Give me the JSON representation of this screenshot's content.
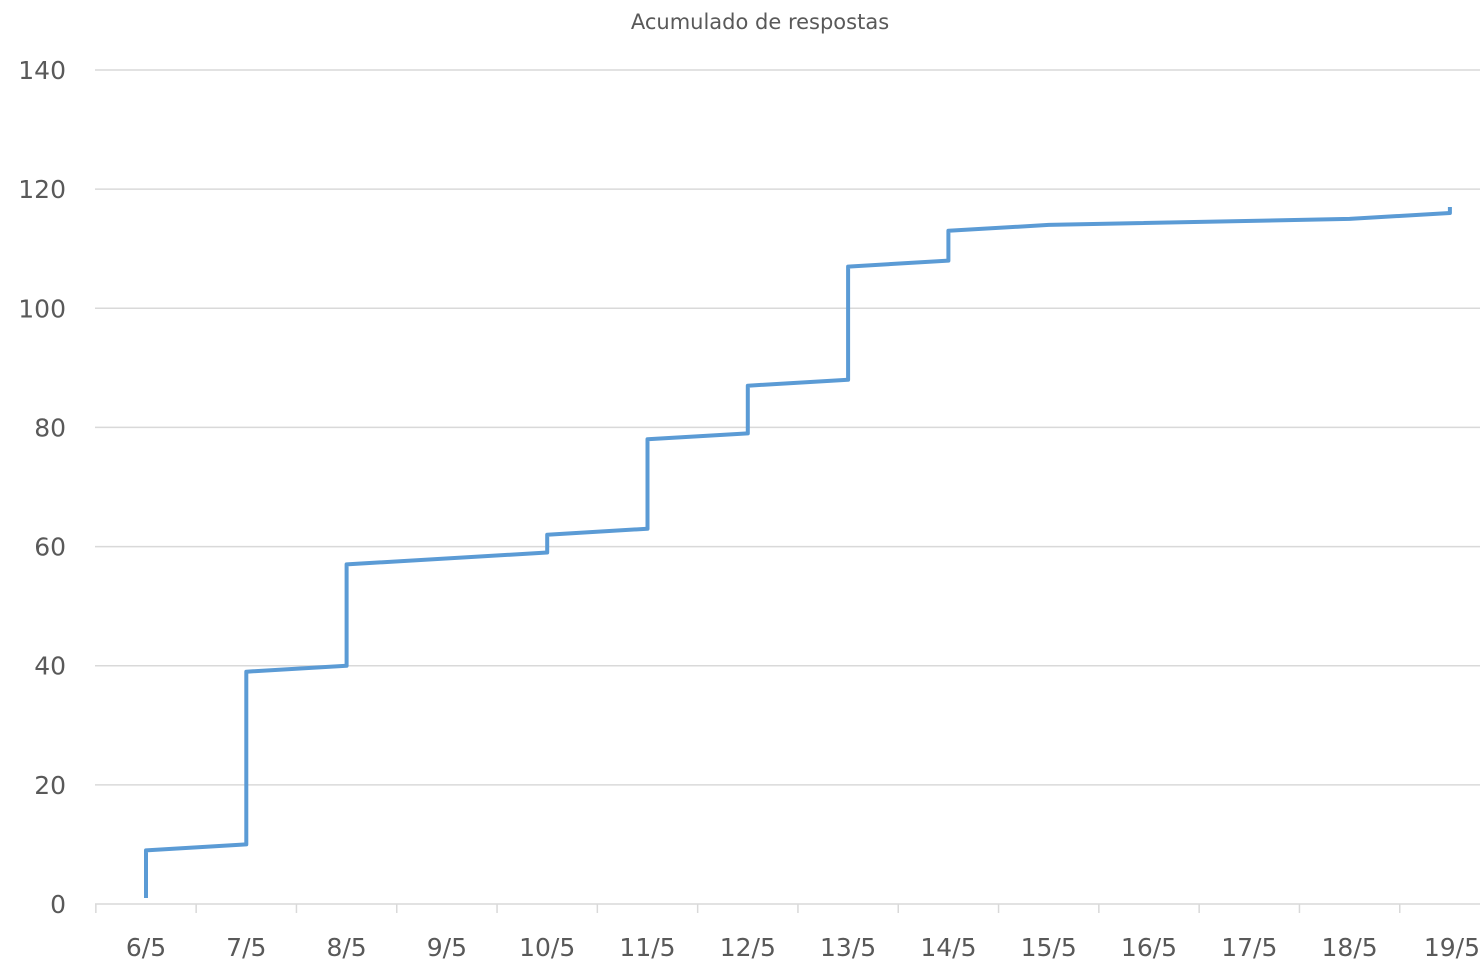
{
  "chart_data": {
    "type": "line",
    "title": "Acumulado de respostas",
    "xlabel": "",
    "ylabel": "",
    "x_axis_type": "date",
    "categories": [
      "6/5",
      "7/5",
      "8/5",
      "9/5",
      "10/5",
      "11/5",
      "12/5",
      "13/5",
      "14/5",
      "15/5",
      "16/5",
      "17/5",
      "18/5",
      "19/5"
    ],
    "ylim": [
      0,
      140
    ],
    "yticks": [
      0,
      20,
      40,
      60,
      80,
      100,
      120,
      140
    ],
    "yticks_labels": [
      "0",
      "20",
      "40",
      "60",
      "80",
      "100",
      "120",
      "140"
    ],
    "grid": true,
    "legend": "none",
    "series": [
      {
        "color": "#5b9bd5",
        "points": [
          {
            "x": "6/5",
            "y": 1
          },
          {
            "x": "6/5",
            "y": 9
          },
          {
            "x": "7/5",
            "y": 10
          },
          {
            "x": "7/5",
            "y": 39
          },
          {
            "x": "8/5",
            "y": 40
          },
          {
            "x": "8/5",
            "y": 57
          },
          {
            "x": "10/5",
            "y": 59
          },
          {
            "x": "10/5",
            "y": 62
          },
          {
            "x": "11/5",
            "y": 63
          },
          {
            "x": "11/5",
            "y": 78
          },
          {
            "x": "12/5",
            "y": 79
          },
          {
            "x": "12/5",
            "y": 87
          },
          {
            "x": "13/5",
            "y": 88
          },
          {
            "x": "13/5",
            "y": 107
          },
          {
            "x": "14/5",
            "y": 108
          },
          {
            "x": "14/5",
            "y": 113
          },
          {
            "x": "15/5",
            "y": 114
          },
          {
            "x": "18/5",
            "y": 115
          },
          {
            "x": "19/5",
            "y": 116
          },
          {
            "x": "19/5",
            "y": 117
          }
        ]
      }
    ]
  }
}
